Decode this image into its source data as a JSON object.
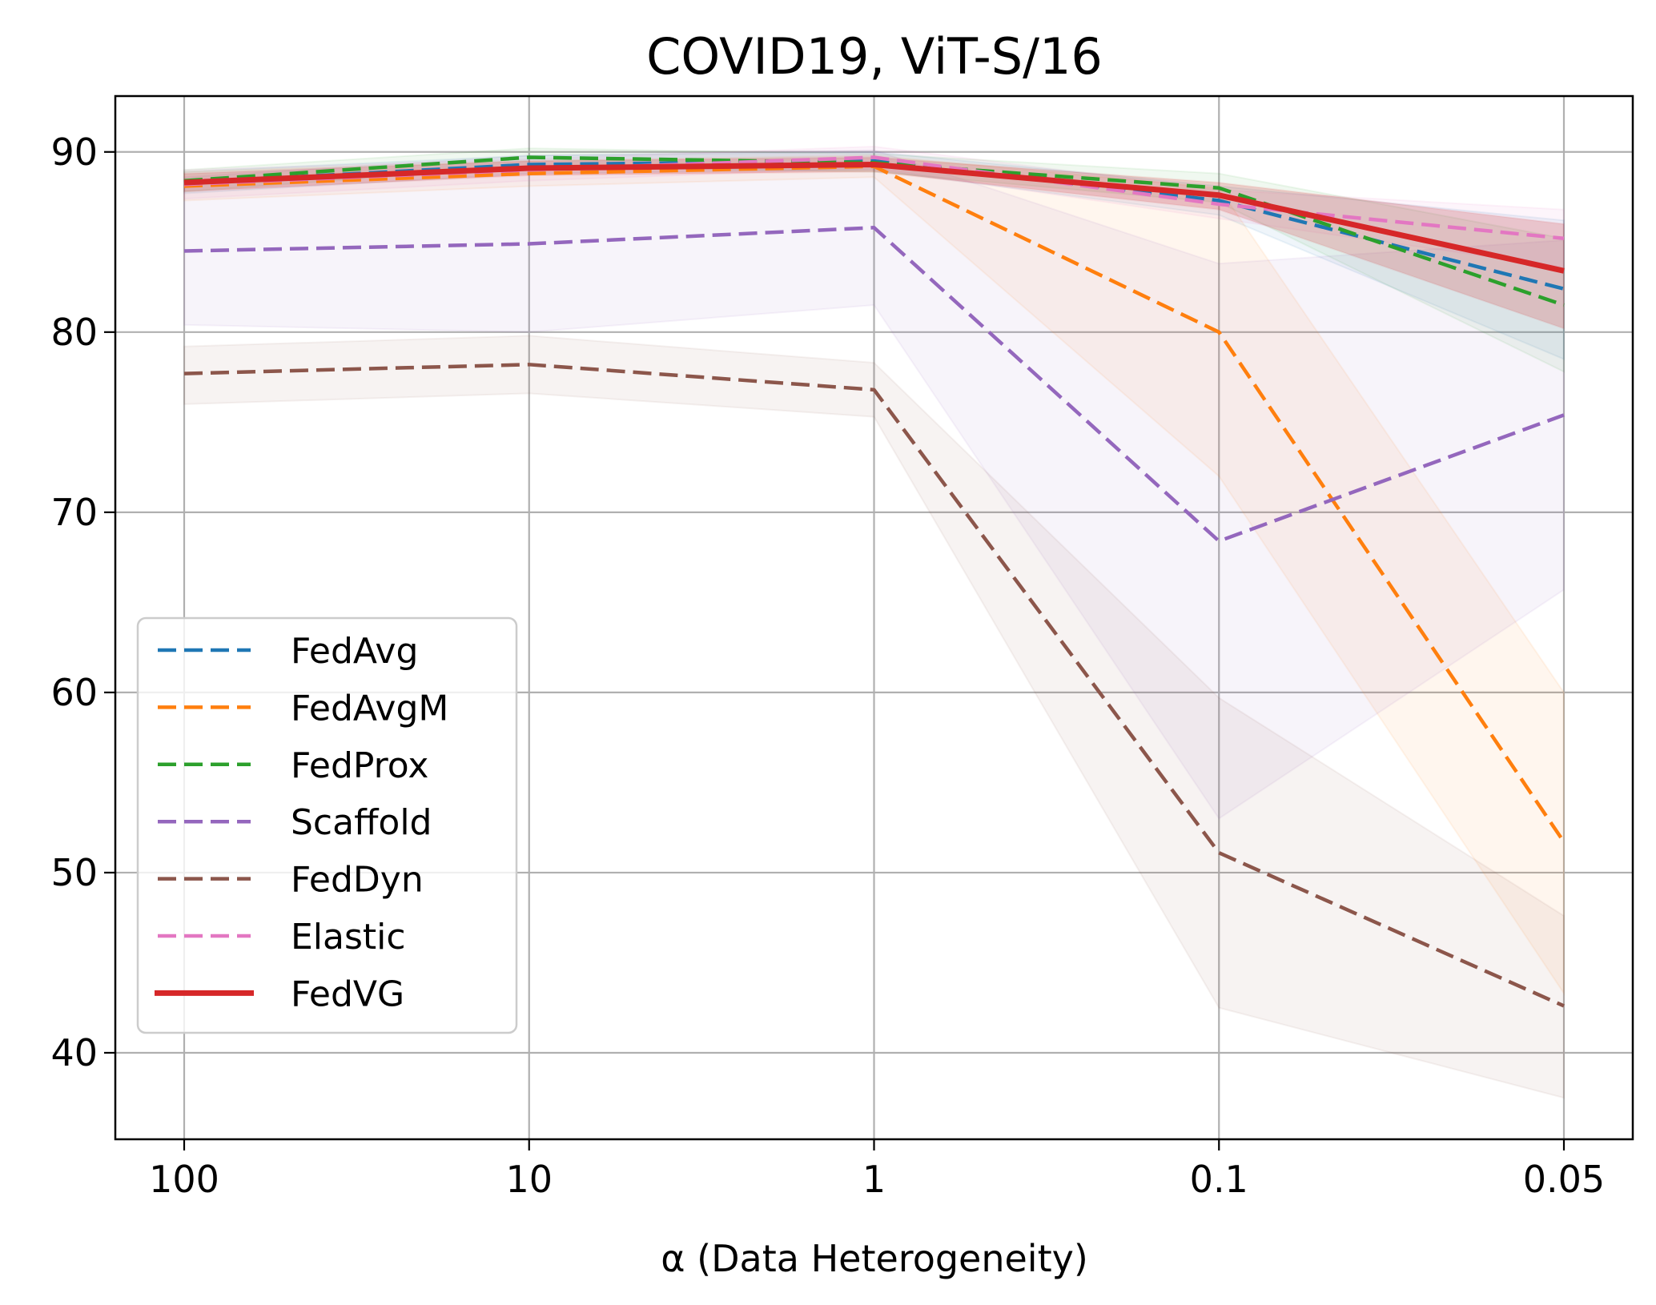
{
  "chart_data": {
    "type": "line",
    "title": "COVID19, ViT-S/16",
    "xlabel": "α (Data Heterogeneity)",
    "ylabel": "",
    "categories": [
      "100",
      "10",
      "1",
      "0.1",
      "0.05"
    ],
    "x_scale": "categorical",
    "ylim": [
      35.2,
      93.1
    ],
    "yticks": [
      40,
      50,
      60,
      70,
      80,
      90
    ],
    "grid": true,
    "legend_position": "lower-left",
    "series": [
      {
        "name": "FedAvg",
        "color": "#1f77b4",
        "style": "dashed",
        "values": [
          88.3,
          89.3,
          89.5,
          87.3,
          82.4
        ],
        "lower": [
          87.7,
          88.8,
          89.0,
          86.5,
          78.5
        ],
        "upper": [
          88.9,
          89.8,
          90.0,
          88.1,
          86.2
        ]
      },
      {
        "name": "FedAvgM",
        "color": "#ff7f0e",
        "style": "dashed",
        "values": [
          88.1,
          88.8,
          89.2,
          80.0,
          51.7
        ],
        "lower": [
          87.3,
          88.1,
          88.6,
          72.0,
          43.3
        ],
        "upper": [
          88.9,
          89.5,
          89.8,
          88.0,
          60.0
        ]
      },
      {
        "name": "FedProx",
        "color": "#2ca02c",
        "style": "dashed",
        "values": [
          88.4,
          89.7,
          89.4,
          88.0,
          81.5
        ],
        "lower": [
          87.8,
          89.2,
          88.9,
          87.2,
          77.8
        ],
        "upper": [
          89.0,
          90.2,
          89.9,
          88.8,
          85.2
        ]
      },
      {
        "name": "Scaffold",
        "color": "#9467bd",
        "style": "dashed",
        "values": [
          84.5,
          84.9,
          85.8,
          68.4,
          75.4
        ],
        "lower": [
          80.4,
          80.0,
          81.5,
          53.0,
          65.7
        ],
        "upper": [
          88.6,
          89.8,
          90.1,
          83.8,
          85.1
        ]
      },
      {
        "name": "FedDyn",
        "color": "#8c564b",
        "style": "dashed",
        "values": [
          77.7,
          78.2,
          76.8,
          51.1,
          42.6
        ],
        "lower": [
          76.0,
          76.6,
          75.3,
          42.5,
          37.5
        ],
        "upper": [
          79.2,
          79.8,
          78.3,
          59.7,
          47.6
        ]
      },
      {
        "name": "Elastic",
        "color": "#e377c2",
        "style": "dashed",
        "values": [
          88.2,
          89.0,
          89.7,
          87.1,
          85.2
        ],
        "lower": [
          87.4,
          88.4,
          89.1,
          86.3,
          83.6
        ],
        "upper": [
          89.0,
          89.6,
          90.3,
          87.9,
          86.8
        ]
      },
      {
        "name": "FedVG",
        "color": "#d62728",
        "style": "solid",
        "values": [
          88.3,
          89.1,
          89.3,
          87.6,
          83.4
        ],
        "lower": [
          87.8,
          88.7,
          88.9,
          86.8,
          80.2
        ],
        "upper": [
          88.8,
          89.5,
          89.7,
          88.3,
          86.0
        ]
      }
    ]
  }
}
